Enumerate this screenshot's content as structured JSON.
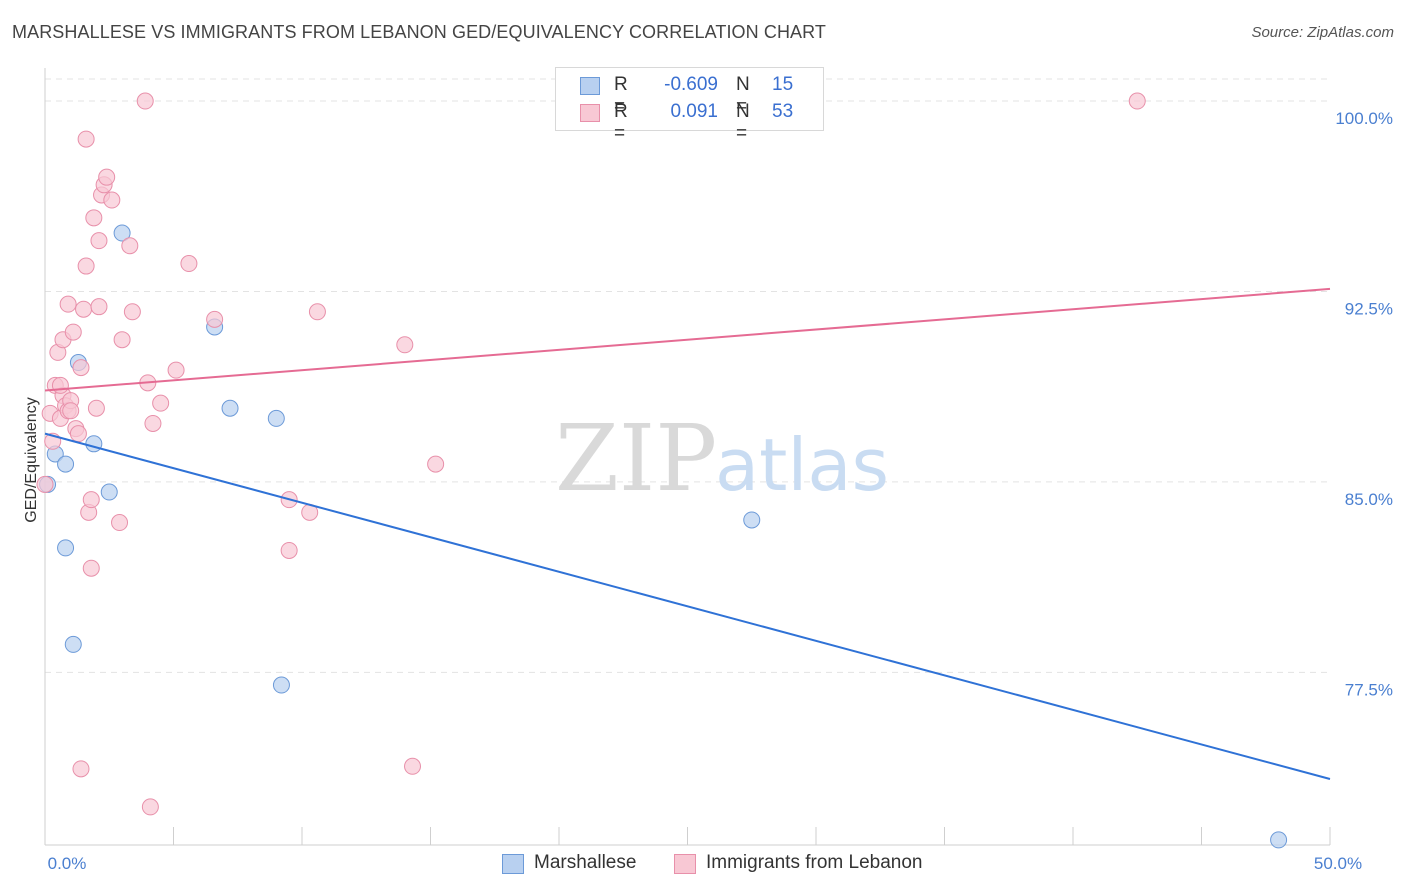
{
  "title": "MARSHALLESE VS IMMIGRANTS FROM LEBANON GED/EQUIVALENCY CORRELATION CHART",
  "source": "Source: ZipAtlas.com",
  "watermark": {
    "zip": "ZIP",
    "atlas": "atlas"
  },
  "legend": {
    "rows": [
      {
        "r_label": "R =",
        "r_value": "-0.609",
        "n_label": "N =",
        "n_value": "15",
        "fill": "#b8d0f0",
        "stroke": "#6c9ad8"
      },
      {
        "r_label": "R =",
        "r_value": "0.091",
        "n_label": "N =",
        "n_value": "53",
        "fill": "#f8c8d4",
        "stroke": "#e890aa"
      }
    ]
  },
  "bottom_legend": {
    "items": [
      {
        "label": "Marshallese",
        "fill": "#b8d0f0",
        "stroke": "#6c9ad8"
      },
      {
        "label": "Immigrants from Lebanon",
        "fill": "#f8c8d4",
        "stroke": "#e890aa"
      }
    ]
  },
  "chart_data": {
    "type": "scatter",
    "title": "MARSHALLESE VS IMMIGRANTS FROM LEBANON GED/EQUIVALENCY CORRELATION CHART",
    "xlabel": "",
    "ylabel": "GED/Equivalency",
    "xlim": [
      0,
      50
    ],
    "ylim": [
      70.7,
      101.3
    ],
    "x_tick_labels": [
      {
        "value": 0,
        "label": "0.0%"
      },
      {
        "value": 50,
        "label": "50.0%"
      }
    ],
    "y_tick_labels": [
      {
        "value": 100.0,
        "label": "100.0%"
      },
      {
        "value": 92.5,
        "label": "92.5%"
      },
      {
        "value": 85.0,
        "label": "85.0%"
      },
      {
        "value": 77.5,
        "label": "77.5%"
      }
    ],
    "series": [
      {
        "name": "Marshallese",
        "color": "#2f72d6",
        "fill": "#b8d0f0",
        "stroke": "#6c9ad8",
        "trendline": {
          "x": [
            0,
            50
          ],
          "y": [
            86.9,
            73.3
          ]
        },
        "points": [
          [
            0.1,
            84.9
          ],
          [
            0.4,
            86.1
          ],
          [
            0.8,
            85.7
          ],
          [
            0.8,
            82.4
          ],
          [
            1.1,
            78.6
          ],
          [
            1.3,
            89.7
          ],
          [
            1.9,
            86.5
          ],
          [
            2.5,
            84.6
          ],
          [
            3.0,
            94.8
          ],
          [
            6.6,
            91.1
          ],
          [
            7.2,
            87.9
          ],
          [
            9.0,
            87.5
          ],
          [
            9.2,
            77.0
          ],
          [
            27.5,
            83.5
          ],
          [
            48.0,
            70.9
          ]
        ]
      },
      {
        "name": "Immigrants from Lebanon",
        "color": "#e56b93",
        "fill": "#f8c8d4",
        "stroke": "#e890aa",
        "trendline": {
          "x": [
            0,
            50
          ],
          "y": [
            88.6,
            92.6
          ]
        },
        "points": [
          [
            0.0,
            84.9
          ],
          [
            0.2,
            87.7
          ],
          [
            0.3,
            86.6
          ],
          [
            0.4,
            88.8
          ],
          [
            0.5,
            90.1
          ],
          [
            0.6,
            87.5
          ],
          [
            0.7,
            88.4
          ],
          [
            0.7,
            90.6
          ],
          [
            0.8,
            88.0
          ],
          [
            0.9,
            87.8
          ],
          [
            0.9,
            92.0
          ],
          [
            1.0,
            88.2
          ],
          [
            1.1,
            90.9
          ],
          [
            1.2,
            87.1
          ],
          [
            1.3,
            86.9
          ],
          [
            1.4,
            89.5
          ],
          [
            1.4,
            73.7
          ],
          [
            1.5,
            91.8
          ],
          [
            1.6,
            93.5
          ],
          [
            1.6,
            98.5
          ],
          [
            1.7,
            83.8
          ],
          [
            1.8,
            84.3
          ],
          [
            1.8,
            81.6
          ],
          [
            1.9,
            95.4
          ],
          [
            2.0,
            87.9
          ],
          [
            2.1,
            91.9
          ],
          [
            2.1,
            94.5
          ],
          [
            2.2,
            96.3
          ],
          [
            2.3,
            96.7
          ],
          [
            2.6,
            96.1
          ],
          [
            2.9,
            83.4
          ],
          [
            3.0,
            90.6
          ],
          [
            3.3,
            94.3
          ],
          [
            3.4,
            91.7
          ],
          [
            3.9,
            100.0
          ],
          [
            4.0,
            88.9
          ],
          [
            4.2,
            87.3
          ],
          [
            4.1,
            72.2
          ],
          [
            4.5,
            88.1
          ],
          [
            5.1,
            89.4
          ],
          [
            5.6,
            93.6
          ],
          [
            6.6,
            91.4
          ],
          [
            9.5,
            84.3
          ],
          [
            9.5,
            82.3
          ],
          [
            10.3,
            83.8
          ],
          [
            10.6,
            91.7
          ],
          [
            14.0,
            90.4
          ],
          [
            14.3,
            73.8
          ],
          [
            15.2,
            85.7
          ],
          [
            42.5,
            100.0
          ],
          [
            1.0,
            87.8
          ],
          [
            0.6,
            88.8
          ],
          [
            2.4,
            97.0
          ]
        ]
      }
    ]
  }
}
